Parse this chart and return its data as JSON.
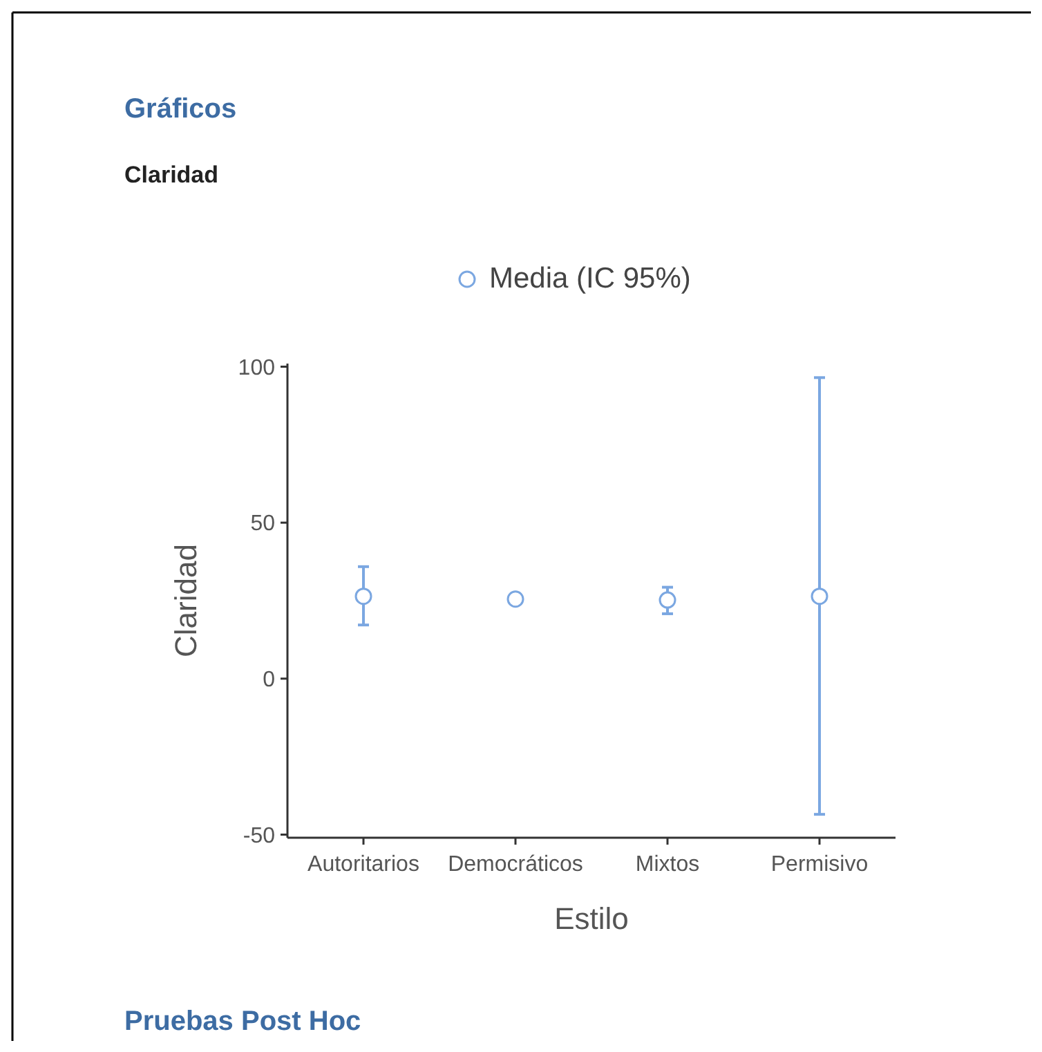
{
  "chart_data": {
    "type": "scatter",
    "title": "Gráficos",
    "subtitle": "Claridad",
    "xlabel": "Estilo",
    "ylabel": "Claridad",
    "categories": [
      "Autoritarios",
      "Democráticos",
      "Mixtos",
      "Permisivo"
    ],
    "series": [
      {
        "name": "Media (IC 95%)",
        "color": "#7ba7e1",
        "values": [
          26.4,
          25.5,
          25.2,
          26.4
        ],
        "errors": [
          [
            17.2,
            35.9
          ],
          null,
          [
            20.8,
            29.3
          ],
          [
            -43.5,
            96.5
          ]
        ]
      }
    ],
    "ylim": [
      -51,
      101
    ],
    "yticks": [
      -50,
      0,
      50,
      100
    ],
    "grid": false,
    "legend": "top",
    "marker": "circle",
    "annotations": [
      "Pruebas Post Hoc"
    ]
  }
}
